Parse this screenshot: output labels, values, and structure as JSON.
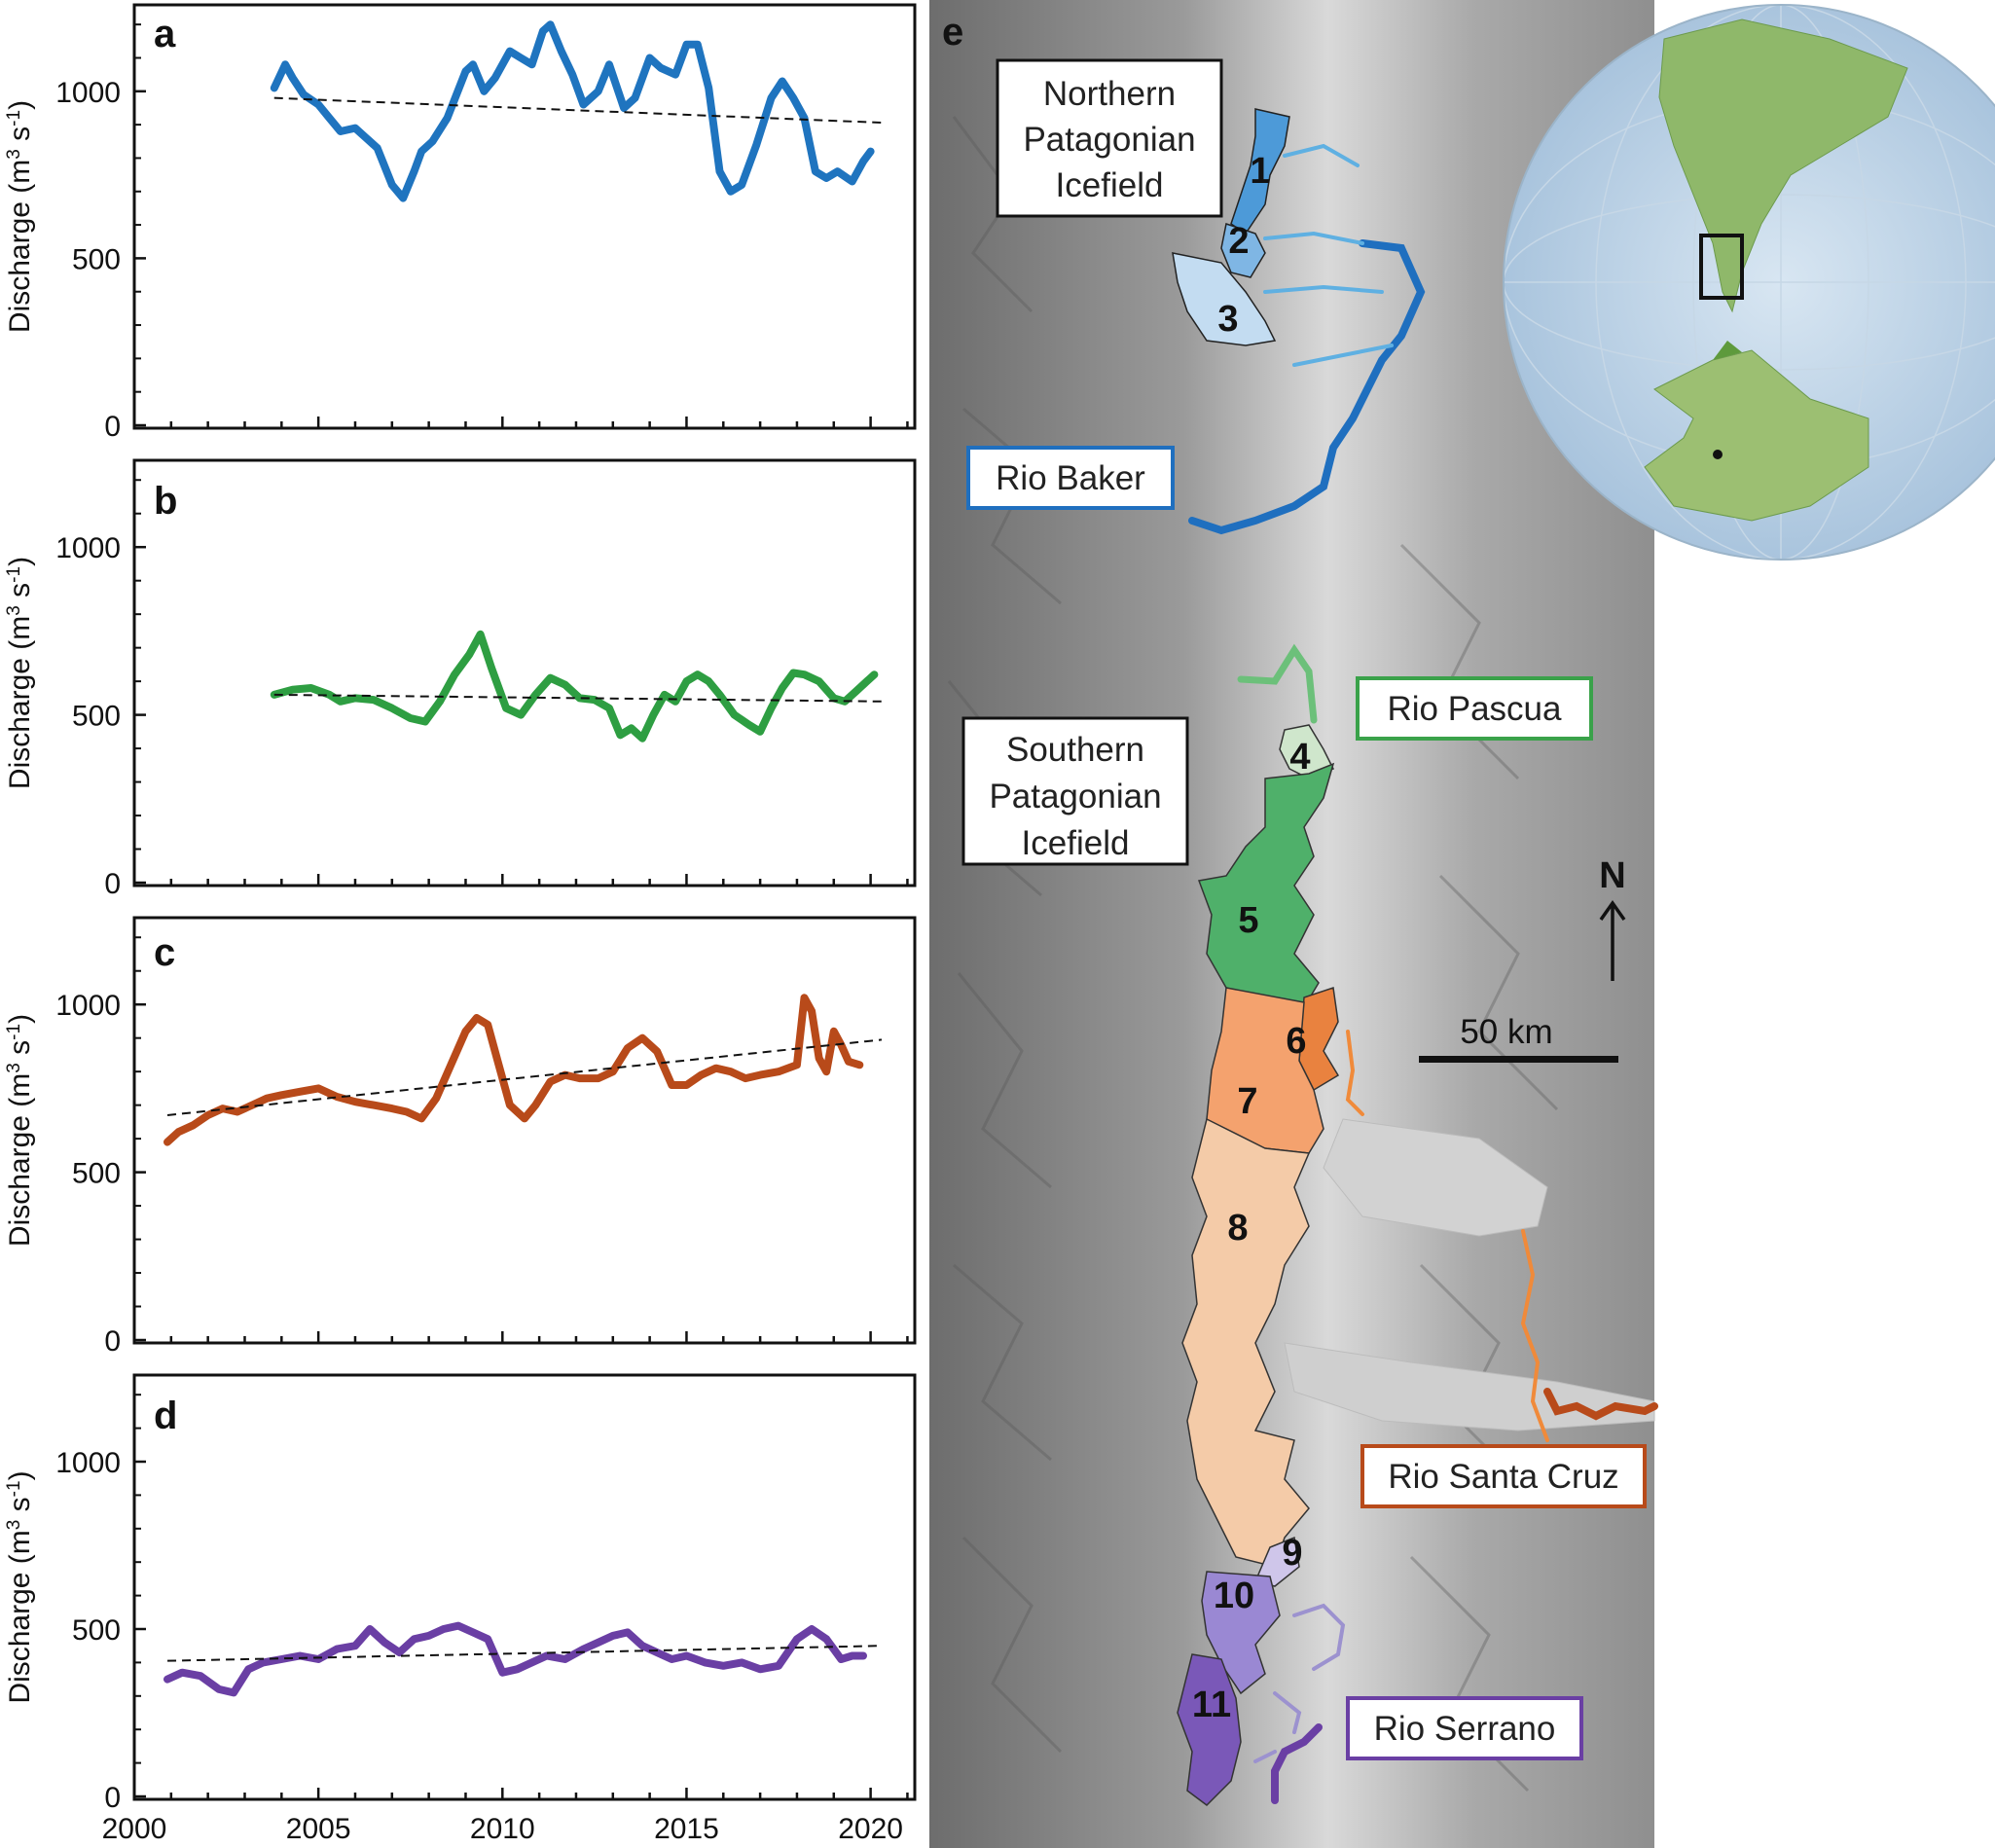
{
  "chart_data": [
    {
      "type": "line",
      "panel_letter": "a",
      "ylabel": "Discharge (m",
      "ylabel_sup1": "3",
      "ylabel_mid": " s",
      "ylabel_sup2": "-1",
      "ylabel_end": ")",
      "ylim": [
        0,
        1250
      ],
      "yticks": [
        0,
        500,
        1000
      ],
      "xlim": [
        2000,
        2021.2
      ],
      "xticks": [
        2000,
        2005,
        2010,
        2015,
        2020
      ],
      "color": "#1f74bf",
      "series": [
        {
          "x": [
            2003.8,
            2004.1,
            2004.3,
            2004.6,
            2005.0,
            2005.3,
            2005.6,
            2006.0,
            2006.3,
            2006.6,
            2007.0,
            2007.3,
            2007.6,
            2007.8,
            2008.1,
            2008.5,
            2009.0,
            2009.2,
            2009.5,
            2009.8,
            2010.2,
            2010.5,
            2010.8,
            2011.1,
            2011.3,
            2011.6,
            2011.9,
            2012.2,
            2012.6,
            2012.9,
            2013.3,
            2013.6,
            2014.0,
            2014.3,
            2014.7,
            2015.0,
            2015.3,
            2015.6,
            2015.9,
            2016.2,
            2016.5,
            2016.9,
            2017.3,
            2017.6,
            2017.9,
            2018.2,
            2018.5,
            2018.8,
            2019.1,
            2019.5,
            2019.8,
            2020.0
          ],
          "y": [
            1010,
            1080,
            1040,
            990,
            960,
            920,
            880,
            890,
            860,
            830,
            720,
            680,
            760,
            820,
            850,
            920,
            1060,
            1080,
            1000,
            1040,
            1120,
            1100,
            1080,
            1180,
            1200,
            1120,
            1050,
            960,
            1000,
            1080,
            950,
            980,
            1100,
            1070,
            1050,
            1140,
            1140,
            1010,
            760,
            700,
            720,
            840,
            980,
            1030,
            980,
            920,
            760,
            740,
            760,
            730,
            790,
            820
          ]
        }
      ],
      "trend": {
        "x": [
          2003.8,
          2020.3
        ],
        "y": [
          980,
          906
        ]
      }
    },
    {
      "type": "line",
      "panel_letter": "b",
      "ylabel": "Discharge (m",
      "ylabel_sup1": "3",
      "ylabel_mid": " s",
      "ylabel_sup2": "-1",
      "ylabel_end": ")",
      "ylim": [
        0,
        1250
      ],
      "yticks": [
        0,
        500,
        1000
      ],
      "xlim": [
        2000,
        2021.2
      ],
      "xticks": [
        2000,
        2005,
        2010,
        2015,
        2020
      ],
      "color": "#2e9e42",
      "series": [
        {
          "x": [
            2003.8,
            2004.3,
            2004.8,
            2005.3,
            2005.6,
            2006.0,
            2006.5,
            2007.0,
            2007.5,
            2007.9,
            2008.3,
            2008.7,
            2009.1,
            2009.4,
            2009.7,
            2010.1,
            2010.5,
            2010.9,
            2011.3,
            2011.7,
            2012.1,
            2012.5,
            2012.9,
            2013.2,
            2013.5,
            2013.8,
            2014.1,
            2014.4,
            2014.7,
            2015.0,
            2015.3,
            2015.6,
            2015.9,
            2016.3,
            2016.7,
            2017.0,
            2017.3,
            2017.6,
            2017.9,
            2018.2,
            2018.6,
            2019.0,
            2019.3,
            2019.6,
            2019.9,
            2020.1
          ],
          "y": [
            560,
            575,
            580,
            560,
            540,
            550,
            545,
            520,
            490,
            480,
            540,
            620,
            680,
            740,
            640,
            520,
            500,
            560,
            610,
            590,
            550,
            545,
            520,
            440,
            460,
            430,
            500,
            560,
            540,
            600,
            620,
            600,
            560,
            500,
            470,
            450,
            520,
            580,
            625,
            620,
            600,
            550,
            540,
            570,
            600,
            620
          ]
        }
      ],
      "trend": {
        "x": [
          2003.8,
          2020.3
        ],
        "y": [
          560,
          540
        ]
      }
    },
    {
      "type": "line",
      "panel_letter": "c",
      "ylabel": "Discharge (m",
      "ylabel_sup1": "3",
      "ylabel_mid": " s",
      "ylabel_sup2": "-1",
      "ylabel_end": ")",
      "ylim": [
        0,
        1250
      ],
      "yticks": [
        0,
        500,
        1000
      ],
      "xlim": [
        2000,
        2021.2
      ],
      "xticks": [
        2000,
        2005,
        2010,
        2015,
        2020
      ],
      "color": "#b84a1a",
      "series": [
        {
          "x": [
            2000.9,
            2001.2,
            2001.6,
            2002.0,
            2002.4,
            2002.8,
            2003.2,
            2003.6,
            2004.0,
            2004.5,
            2005.0,
            2005.5,
            2006.0,
            2006.5,
            2007.0,
            2007.4,
            2007.8,
            2008.2,
            2008.6,
            2009.0,
            2009.3,
            2009.6,
            2009.9,
            2010.2,
            2010.6,
            2010.9,
            2011.3,
            2011.7,
            2012.1,
            2012.6,
            2013.0,
            2013.4,
            2013.8,
            2014.2,
            2014.6,
            2015.0,
            2015.4,
            2015.8,
            2016.2,
            2016.6,
            2017.0,
            2017.5,
            2018.0,
            2018.2,
            2018.4,
            2018.6,
            2018.8,
            2019.0,
            2019.2,
            2019.4,
            2019.7
          ],
          "y": [
            590,
            620,
            640,
            670,
            690,
            680,
            700,
            720,
            730,
            740,
            750,
            725,
            710,
            700,
            690,
            680,
            660,
            720,
            820,
            920,
            960,
            940,
            820,
            700,
            660,
            700,
            770,
            790,
            780,
            780,
            800,
            870,
            900,
            860,
            760,
            760,
            790,
            810,
            800,
            780,
            790,
            800,
            820,
            1020,
            980,
            840,
            800,
            920,
            880,
            830,
            820
          ]
        }
      ],
      "trend": {
        "x": [
          2000.9,
          2020.3
        ],
        "y": [
          670,
          895
        ]
      }
    },
    {
      "type": "line",
      "panel_letter": "d",
      "ylabel": "Discharge (m",
      "ylabel_sup1": "3",
      "ylabel_mid": " s",
      "ylabel_sup2": "-1",
      "ylabel_end": ")",
      "ylim": [
        0,
        1250
      ],
      "yticks": [
        0,
        500,
        1000
      ],
      "xlim": [
        2000,
        2021.2
      ],
      "xticks": [
        2000,
        2005,
        2010,
        2015,
        2020
      ],
      "xticklabels": [
        "2000",
        "2005",
        "2010",
        "2015",
        "2020"
      ],
      "color": "#6a3fa4",
      "series": [
        {
          "x": [
            2000.9,
            2001.3,
            2001.8,
            2002.3,
            2002.7,
            2003.1,
            2003.5,
            2004.0,
            2004.5,
            2005.0,
            2005.5,
            2006.0,
            2006.4,
            2006.8,
            2007.2,
            2007.6,
            2008.0,
            2008.4,
            2008.8,
            2009.2,
            2009.6,
            2010.0,
            2010.4,
            2010.8,
            2011.2,
            2011.7,
            2012.2,
            2012.6,
            2013.0,
            2013.4,
            2013.8,
            2014.2,
            2014.6,
            2015.0,
            2015.5,
            2016.0,
            2016.5,
            2017.0,
            2017.5,
            2018.0,
            2018.4,
            2018.8,
            2019.2,
            2019.5,
            2019.8
          ],
          "y": [
            350,
            370,
            360,
            320,
            310,
            380,
            400,
            410,
            420,
            410,
            440,
            450,
            500,
            460,
            430,
            470,
            480,
            500,
            510,
            490,
            470,
            370,
            380,
            400,
            420,
            410,
            440,
            460,
            480,
            490,
            450,
            430,
            410,
            420,
            400,
            390,
            400,
            380,
            390,
            470,
            500,
            470,
            410,
            420,
            420
          ]
        }
      ],
      "trend": {
        "x": [
          2000.9,
          2020.3
        ],
        "y": [
          405,
          450
        ]
      }
    }
  ],
  "map": {
    "panel_letter": "e",
    "boxes": {
      "npi": [
        "Northern",
        "Patagonian",
        "Icefield"
      ],
      "spi": [
        "Southern",
        "Patagonian",
        "Icefield"
      ],
      "baker": "Rio Baker",
      "pascua": "Rio Pascua",
      "santa_cruz": "Rio Santa Cruz",
      "serrano": "Rio Serrano"
    },
    "glacier_numbers": [
      "1",
      "2",
      "3",
      "4",
      "5",
      "6",
      "7",
      "8",
      "9",
      "10",
      "11"
    ],
    "north": "N",
    "scale": "50 km",
    "colors": {
      "baker": "#1f6fbf",
      "pascua": "#3aa24a",
      "santa_cruz": "#b84a1a",
      "serrano": "#6a3fa4"
    }
  }
}
